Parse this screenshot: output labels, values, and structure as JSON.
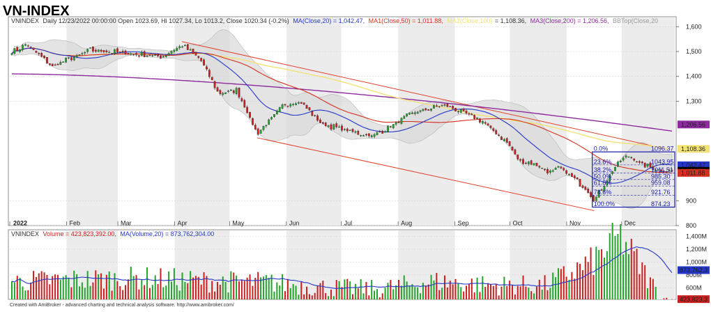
{
  "title": "VN-INDEX",
  "footer": "Created with AmiBroker - advanced charting and technical analysis software. http://www.amibroker.com/",
  "price_header": {
    "symbol": "VNINDEX",
    "info": "Daily 12/23/2022 00:00:00 Open 1023.69, Hi 1027.34, Lo 1013.2, Close 1020.34 (-0.2%)",
    "ma20": "MA(Close,20) = 1,042.47,",
    "ma50": "MA1(Close,50) = 1,011.88,",
    "ma100": "MA2(Close,100)",
    "ma100_value": "= 1,108.36,",
    "ma200": "MA3(Close,200) = 1,206.56,",
    "bb": "BBTop(Close,20"
  },
  "volume_header": {
    "symbol": "VNINDEX",
    "volume": "Volume = 423,823,392.00,",
    "ma": "MA(Volume,20) = 873,762,304.00"
  },
  "colors": {
    "up": "#22a32a",
    "down": "#cc1f1f",
    "ma20": "#2336c8",
    "ma50": "#d6301e",
    "ma100": "#f2e278",
    "ma200": "#8d2a9e",
    "bb_fill": "#d8d8d8",
    "trend": "#e2402a",
    "fib_box": "#1a1aa8"
  },
  "chart_data": [
    {
      "type": "candlestick",
      "name": "price",
      "months": [
        "2022",
        "Feb",
        "Mar",
        "Apr",
        "May",
        "Jun",
        "Jul",
        "Aug",
        "Sep",
        "Oct",
        "Nov",
        "Dec"
      ],
      "y_ticks": [
        "1,600",
        "1,500",
        "1,400",
        "1,300",
        "900",
        "800"
      ],
      "ylim": [
        800,
        1640
      ],
      "key_points": [
        {
          "date": "2022-01-03",
          "value": 1500
        },
        {
          "date": "2022-01-10",
          "value": 1530
        },
        {
          "date": "2022-01-24",
          "value": 1440
        },
        {
          "date": "2022-02-14",
          "value": 1505
        },
        {
          "date": "2022-03-10",
          "value": 1490
        },
        {
          "date": "2022-03-25",
          "value": 1480
        },
        {
          "date": "2022-04-05",
          "value": 1525
        },
        {
          "date": "2022-04-15",
          "value": 1470
        },
        {
          "date": "2022-04-25",
          "value": 1330
        },
        {
          "date": "2022-05-05",
          "value": 1345
        },
        {
          "date": "2022-05-16",
          "value": 1170
        },
        {
          "date": "2022-05-31",
          "value": 1290
        },
        {
          "date": "2022-06-09",
          "value": 1295
        },
        {
          "date": "2022-06-20",
          "value": 1210
        },
        {
          "date": "2022-06-30",
          "value": 1190
        },
        {
          "date": "2022-07-08",
          "value": 1175
        },
        {
          "date": "2022-07-18",
          "value": 1160
        },
        {
          "date": "2022-07-29",
          "value": 1205
        },
        {
          "date": "2022-08-10",
          "value": 1255
        },
        {
          "date": "2022-08-26",
          "value": 1285
        },
        {
          "date": "2022-09-06",
          "value": 1255
        },
        {
          "date": "2022-09-16",
          "value": 1220
        },
        {
          "date": "2022-09-30",
          "value": 1130
        },
        {
          "date": "2022-10-06",
          "value": 1060
        },
        {
          "date": "2022-10-12",
          "value": 1055
        },
        {
          "date": "2022-10-24",
          "value": 1010
        },
        {
          "date": "2022-10-28",
          "value": 1035
        },
        {
          "date": "2022-11-03",
          "value": 1000
        },
        {
          "date": "2022-11-11",
          "value": 950
        },
        {
          "date": "2022-11-16",
          "value": 900
        },
        {
          "date": "2022-11-21",
          "value": 960
        },
        {
          "date": "2022-11-25",
          "value": 1010
        },
        {
          "date": "2022-11-30",
          "value": 1060
        },
        {
          "date": "2022-12-05",
          "value": 1080
        },
        {
          "date": "2022-12-12",
          "value": 1045
        },
        {
          "date": "2022-12-23",
          "value": 1020.34
        }
      ],
      "last": {
        "open": 1023.69,
        "high": 1027.34,
        "low": 1013.2,
        "close": 1020.34,
        "change_pct": -0.2
      },
      "moving_averages": {
        "ma20": {
          "label": "1,042.47",
          "value": 1042.47
        },
        "ma50": {
          "label": "1,011.88",
          "value": 1011.88
        },
        "ma100": {
          "label": "1,108.36",
          "value": 1108.36
        },
        "ma200": {
          "label": "1,206.56",
          "value": 1206.56
        },
        "close": {
          "label": "1,020.34",
          "value": 1020.34
        }
      },
      "fibonacci": [
        {
          "ratio": "0.0%",
          "value": "1096.37"
        },
        {
          "ratio": "23.6%",
          "value": "1043.95"
        },
        {
          "ratio": "38.2%",
          "value": "1011.51"
        },
        {
          "ratio": "50.0%",
          "value": "985.30"
        },
        {
          "ratio": "61.8%",
          "value": "959.08"
        },
        {
          "ratio": "78.6%",
          "value": "921.76"
        },
        {
          "ratio": "100.0%",
          "value": "874.23"
        }
      ],
      "trendlines": [
        {
          "from": {
            "date": "2022-04-05",
            "value": 1540
          },
          "to": {
            "date": "2022-12-23",
            "value": 1112
          }
        },
        {
          "from": {
            "date": "2022-05-16",
            "value": 1153
          },
          "to": {
            "date": "2022-11-16",
            "value": 860
          }
        }
      ]
    },
    {
      "type": "bar",
      "name": "volume",
      "y_ticks": [
        "1,400M",
        "1,200M",
        "1,000M",
        "800M",
        "600M"
      ],
      "ylim": [
        420,
        1500
      ],
      "last_volume": {
        "label": "423,823,3",
        "value": 423823392
      },
      "volume_ma": {
        "label": "873,762,3",
        "value": 873762304
      },
      "approx_levels": [
        {
          "date": "2022-01-05",
          "value": 700
        },
        {
          "date": "2022-02-10",
          "value": 730
        },
        {
          "date": "2022-03-15",
          "value": 750
        },
        {
          "date": "2022-04-20",
          "value": 700
        },
        {
          "date": "2022-05-20",
          "value": 690
        },
        {
          "date": "2022-06-20",
          "value": 610
        },
        {
          "date": "2022-07-20",
          "value": 580
        },
        {
          "date": "2022-08-20",
          "value": 700
        },
        {
          "date": "2022-09-20",
          "value": 640
        },
        {
          "date": "2022-10-20",
          "value": 640
        },
        {
          "date": "2022-11-15",
          "value": 1000
        },
        {
          "date": "2022-11-30",
          "value": 1400
        },
        {
          "date": "2022-12-23",
          "value": 424
        }
      ]
    }
  ]
}
